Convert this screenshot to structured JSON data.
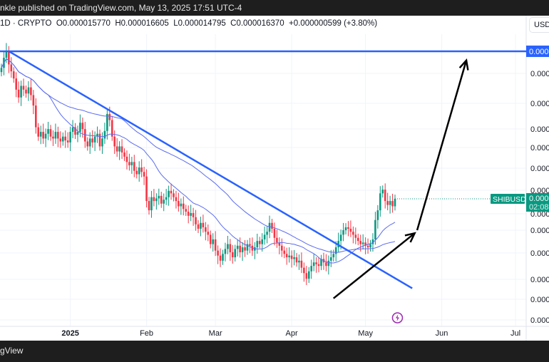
{
  "header": {
    "published": "nkle published on TradingView.com, May 13, 2025 17:51 UTC-4",
    "interval": "1D · CRYPTO",
    "open": "O0.000015770",
    "high": "H0.000016605",
    "low": "L0.000014795",
    "close": "C0.000016370",
    "change": "+0.000000599 (+3.80%)"
  },
  "currency": "USD",
  "footer": {
    "brand": "gView"
  },
  "colors": {
    "up": "#089981",
    "down": "#f23645",
    "trend": "#2962ff",
    "ma": "#5b6cf0",
    "arrow": "#000000",
    "event": "#9c27b0"
  },
  "chart_data": {
    "type": "candlestick",
    "symbol": "SHIBUSD",
    "scale": "log",
    "grid": true,
    "start_date": "2024-12-04",
    "closes": [
      3.05e-05,
      3.2e-05,
      3.3e-05,
      3.1e-05,
      3e-05,
      2.9e-05,
      2.75e-05,
      2.65e-05,
      2.8e-05,
      2.75e-05,
      2.7e-05,
      2.78e-05,
      2.68e-05,
      2.55e-05,
      2.3e-05,
      2.2e-05,
      2.25e-05,
      2.18e-05,
      2.23e-05,
      2.28e-05,
      2.2e-05,
      2.18e-05,
      2.25e-05,
      2.18e-05,
      2.15e-05,
      2.2e-05,
      2.16e-05,
      2.14e-05,
      2.25e-05,
      2.3e-05,
      2.22e-05,
      2.25e-05,
      2.35e-05,
      2.28e-05,
      2.15e-05,
      2.1e-05,
      2.18e-05,
      2.14e-05,
      2.2e-05,
      2.23e-05,
      2.1e-05,
      2.18e-05,
      2.26e-05,
      2.45e-05,
      2.38e-05,
      2.2e-05,
      2.1e-05,
      2.05e-05,
      2.1e-05,
      2.04e-05,
      2e-05,
      1.95e-05,
      1.92e-05,
      1.95e-05,
      1.87e-05,
      1.84e-05,
      1.9e-05,
      1.86e-05,
      1.82e-05,
      1.62e-05,
      1.55e-05,
      1.65e-05,
      1.62e-05,
      1.64e-05,
      1.66e-05,
      1.6e-05,
      1.63e-05,
      1.65e-05,
      1.7e-05,
      1.68e-05,
      1.65e-05,
      1.62e-05,
      1.58e-05,
      1.6e-05,
      1.56e-05,
      1.54e-05,
      1.51e-05,
      1.53e-05,
      1.5e-05,
      1.45e-05,
      1.42e-05,
      1.46e-05,
      1.43e-05,
      1.4e-05,
      1.38e-05,
      1.32e-05,
      1.35e-05,
      1.28e-05,
      1.25e-05,
      1.22e-05,
      1.26e-05,
      1.29e-05,
      1.32e-05,
      1.27e-05,
      1.24e-05,
      1.29e-05,
      1.31e-05,
      1.27e-05,
      1.3e-05,
      1.28e-05,
      1.32e-05,
      1.31e-05,
      1.28e-05,
      1.3e-05,
      1.34e-05,
      1.32e-05,
      1.35e-05,
      1.38e-05,
      1.4e-05,
      1.46e-05,
      1.42e-05,
      1.36e-05,
      1.33e-05,
      1.31e-05,
      1.28e-05,
      1.26e-05,
      1.24e-05,
      1.25e-05,
      1.23e-05,
      1.24e-05,
      1.21e-05,
      1.22e-05,
      1.18e-05,
      1.15e-05,
      1.12e-05,
      1.16e-05,
      1.19e-05,
      1.21e-05,
      1.2e-05,
      1.19e-05,
      1.23e-05,
      1.21e-05,
      1.19e-05,
      1.22e-05,
      1.24e-05,
      1.26e-05,
      1.3e-05,
      1.34e-05,
      1.38e-05,
      1.41e-05,
      1.43e-05,
      1.42e-05,
      1.4e-05,
      1.38e-05,
      1.36e-05,
      1.34e-05,
      1.32e-05,
      1.33e-05,
      1.31e-05,
      1.3e-05,
      1.32e-05,
      1.35e-05,
      1.48e-05,
      1.55e-05,
      1.68e-05,
      1.71e-05,
      1.62e-05,
      1.59e-05,
      1.62e-05,
      1.58e-05,
      1.637e-05
    ],
    "moving_averages": [
      20,
      50
    ],
    "horizontal_line": {
      "price": 3.3e-05,
      "label": "0.000"
    },
    "trendline": {
      "from": [
        "2024-12-07",
        3.3e-05
      ],
      "to": [
        "2025-05-20",
        1.07e-05
      ]
    },
    "arrows": [
      {
        "from": [
          "2025-04-18",
          1.02e-05
        ],
        "to": [
          "2025-05-21",
          1.39e-05
        ]
      },
      {
        "from": [
          "2025-05-22",
          1.41e-05
        ],
        "to": [
          "2025-06-11",
          3.16e-05
        ]
      }
    ],
    "last_price": {
      "tag": "SHIBUSD",
      "value": "0.000",
      "countdown": "02:08"
    },
    "y_tick_labels": [
      "0.000",
      "0.000",
      "0.000",
      "0.000",
      "0.000",
      "0.000",
      "0.000",
      "0.000",
      "0.000",
      "0.000",
      "0.000",
      "0.000"
    ],
    "x_ticks": [
      {
        "label": "2025",
        "date": "2025-01-01"
      },
      {
        "label": "Feb",
        "date": "2025-02-01"
      },
      {
        "label": "Mar",
        "date": "2025-03-01"
      },
      {
        "label": "Apr",
        "date": "2025-04-01"
      },
      {
        "label": "May",
        "date": "2025-05-01"
      },
      {
        "label": "Jun",
        "date": "2025-06-01"
      },
      {
        "label": "Jul",
        "date": "2025-07-01"
      }
    ],
    "event_marker": {
      "date": "2025-05-14",
      "icon": "lightning-icon"
    }
  }
}
